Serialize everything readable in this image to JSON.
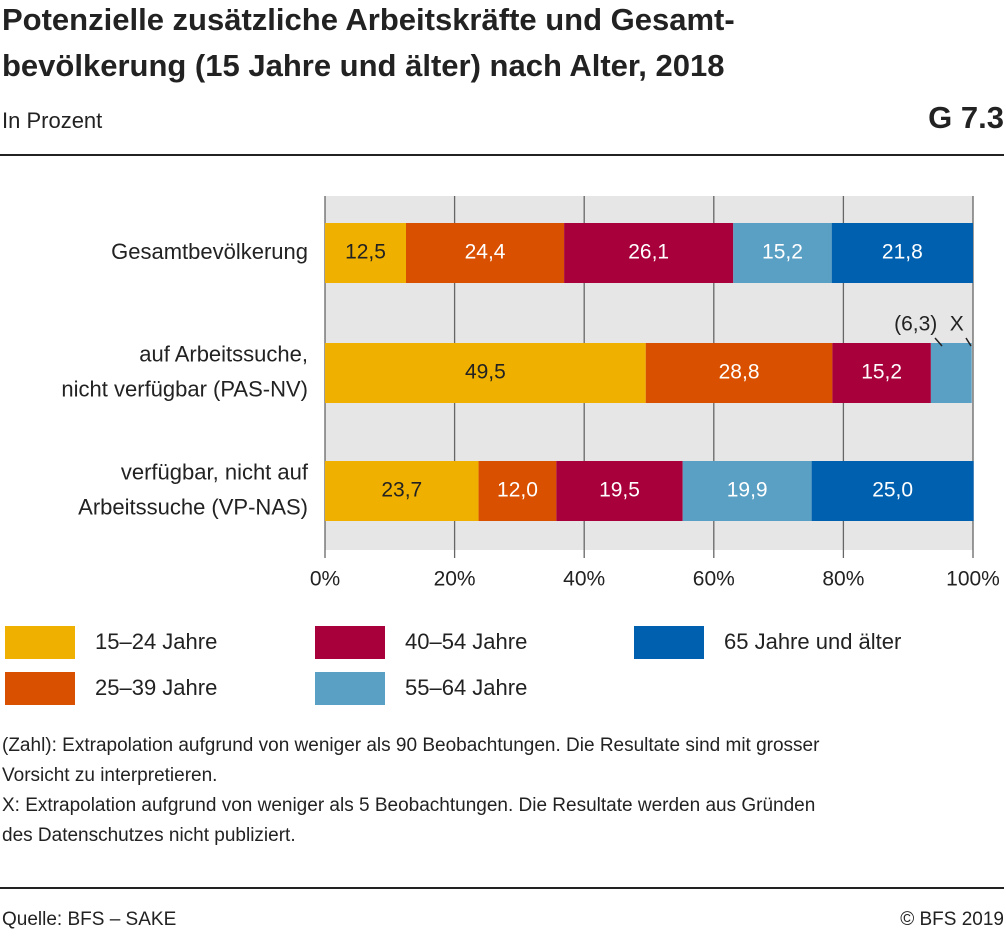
{
  "chart_data": {
    "type": "stacked-bar-horizontal",
    "title": [
      "Potenzielle zusätzliche Arbeitskräfte und Gesamt-",
      "bevölkerung (15 Jahre und älter) nach Alter, 2018"
    ],
    "subtitle": "In Prozent",
    "chart_number": "G 7.3",
    "categories": [
      [
        "Gesamtbevölkerung"
      ],
      [
        "auf Arbeitssuche,",
        "nicht verfügbar (PAS-NV)"
      ],
      [
        "verfügbar, nicht auf",
        "Arbeitssuche (VP-NAS)"
      ]
    ],
    "series": [
      {
        "name": "15–24 Jahre",
        "color": "#f0b000",
        "values": [
          12.5,
          49.5,
          23.7
        ],
        "value_labels": [
          "12,5",
          "49,5",
          "23,7"
        ]
      },
      {
        "name": "25–39 Jahre",
        "color": "#d95000",
        "values": [
          24.4,
          28.8,
          12.0
        ],
        "value_labels": [
          "24,4",
          "28,8",
          "12,0"
        ]
      },
      {
        "name": "40–54 Jahre",
        "color": "#a8003a",
        "values": [
          26.1,
          15.2,
          19.5
        ],
        "value_labels": [
          "26,1",
          "15,2",
          "19,5"
        ]
      },
      {
        "name": "55–64 Jahre",
        "color": "#5a9fc4",
        "values": [
          15.2,
          6.3,
          19.9
        ],
        "value_labels": [
          "15,2",
          "(6,3)",
          "19,9"
        ]
      },
      {
        "name": "65 Jahre und älter",
        "color": "#0060b0",
        "values": [
          21.8,
          null,
          25.0
        ],
        "value_labels": [
          "21,8",
          "X",
          "25,0"
        ]
      }
    ],
    "xlim": [
      0,
      100
    ],
    "xticks": [
      {
        "value": 0,
        "label": "0%"
      },
      {
        "value": 20,
        "label": "20%"
      },
      {
        "value": 40,
        "label": "40%"
      },
      {
        "value": 60,
        "label": "60%"
      },
      {
        "value": 80,
        "label": "80%"
      },
      {
        "value": 100,
        "label": "100%"
      }
    ],
    "grid": true,
    "notes": [
      "(Zahl): Extrapolation aufgrund von weniger als 90 Beobachtungen. Die Resultate sind mit grosser",
      "Vorsicht zu interpretieren.",
      "X: Extrapolation aufgrund von weniger als 5 Beobachtungen. Die Resultate werden aus Gründen",
      "des Datenschutzes nicht publiziert."
    ],
    "source": "Quelle: BFS – SAKE",
    "copyright": "© BFS 2019"
  }
}
